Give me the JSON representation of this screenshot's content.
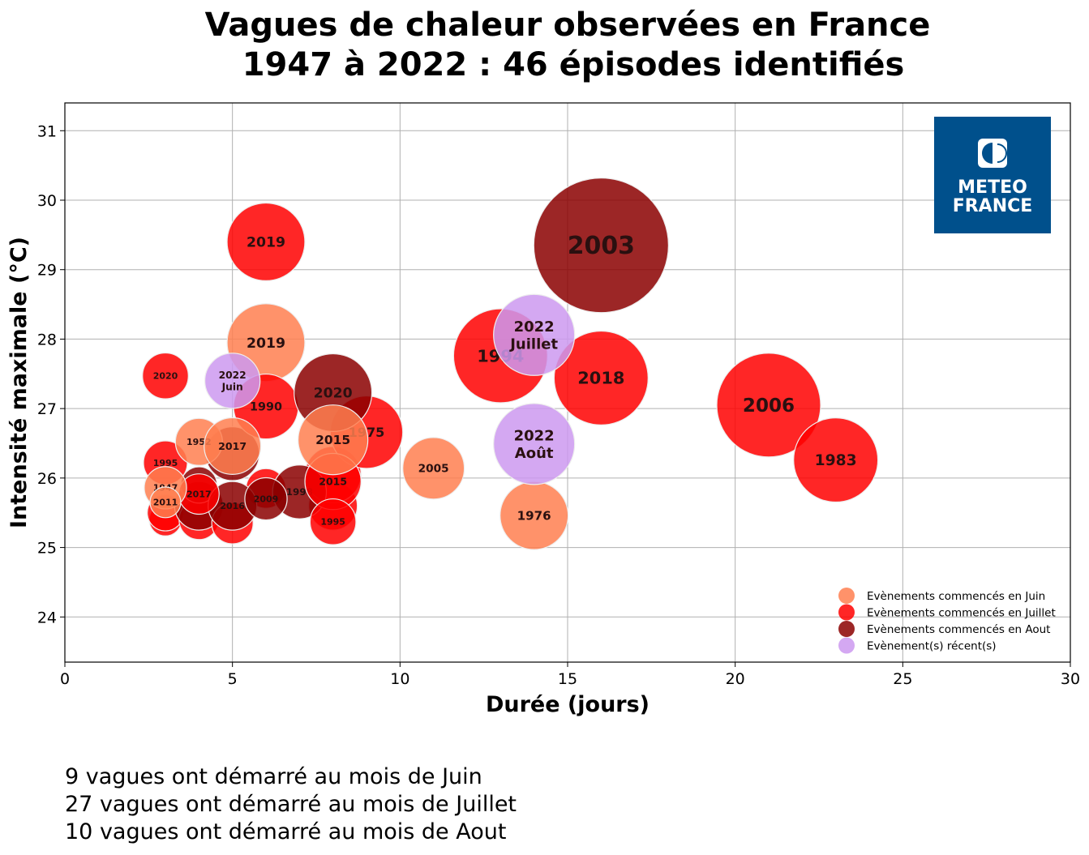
{
  "chart_data": {
    "type": "scatter",
    "title": [
      "Vagues de chaleur observées en France",
      "1947 à 2022 : 46 épisodes identifiés"
    ],
    "xlabel": "Durée (jours)",
    "ylabel": "Intensité maximale (°C)",
    "xlim": [
      0,
      30
    ],
    "ylim": [
      23.35,
      31.4
    ],
    "xticks": [
      0,
      5,
      10,
      15,
      20,
      25,
      30
    ],
    "yticks": [
      24,
      25,
      26,
      27,
      28,
      29,
      30,
      31
    ],
    "grid": true,
    "legend_position": "bottom-right",
    "colors": {
      "juin": "#ff7f50",
      "juillet": "#ff0000",
      "aout": "#8b0000",
      "recent": "#cc99f0"
    },
    "legend": [
      {
        "key": "juin",
        "label": "Evènements commencés en Juin"
      },
      {
        "key": "juillet",
        "label": "Evènements commencés en Juillet"
      },
      {
        "key": "aout",
        "label": "Evènements commencés en Aout"
      },
      {
        "key": "recent",
        "label": "Evènement(s) récent(s)"
      }
    ],
    "points": [
      {
        "label": "",
        "group": "juillet",
        "duration": 3,
        "intensity": 25.4,
        "severity": 4
      },
      {
        "label": "",
        "group": "juillet",
        "duration": 3,
        "intensity": 25.5,
        "severity": 5
      },
      {
        "label": "",
        "group": "juillet",
        "duration": 4,
        "intensity": 25.4,
        "severity": 6
      },
      {
        "label": "",
        "group": "aout",
        "duration": 4,
        "intensity": 25.6,
        "severity": 9
      },
      {
        "label": "",
        "group": "aout",
        "duration": 4,
        "intensity": 25.9,
        "severity": 5
      },
      {
        "label": "",
        "group": "juillet",
        "duration": 5,
        "intensity": 25.35,
        "severity": 6.5
      },
      {
        "label": "",
        "group": "aout",
        "duration": 5,
        "intensity": 26.35,
        "severity": 11
      },
      {
        "label": "",
        "group": "juillet",
        "duration": 6,
        "intensity": 25.85,
        "severity": 6
      },
      {
        "label": "",
        "group": "juillet",
        "duration": 8,
        "intensity": 25.6,
        "severity": 9
      },
      {
        "label": "",
        "group": "juillet",
        "duration": 8,
        "intensity": 26.05,
        "severity": 12
      },
      {
        "label": "2003",
        "group": "aout",
        "duration": 16,
        "intensity": 29.35,
        "severity": 69
      },
      {
        "label": "2019",
        "group": "juillet",
        "duration": 6,
        "intensity": 29.4,
        "severity": 23
      },
      {
        "label": "2019",
        "group": "juin",
        "duration": 6,
        "intensity": 27.95,
        "severity": 23
      },
      {
        "label": "2020",
        "group": "juillet",
        "duration": 3,
        "intensity": 27.47,
        "severity": 8
      },
      {
        "label": "1990",
        "group": "juillet",
        "duration": 6,
        "intensity": 27.03,
        "severity": 16
      },
      {
        "label": "1975",
        "group": "juillet",
        "duration": 9,
        "intensity": 26.66,
        "severity": 20
      },
      {
        "label": "2020",
        "group": "aout",
        "duration": 8,
        "intensity": 27.23,
        "severity": 23
      },
      {
        "label": "1998",
        "group": "aout",
        "duration": 7,
        "intensity": 25.8,
        "severity": 11
      },
      {
        "label": "2015",
        "group": "juillet",
        "duration": 8,
        "intensity": 25.95,
        "severity": 12
      },
      {
        "label": "1995",
        "group": "juillet",
        "duration": 8,
        "intensity": 25.37,
        "severity": 8
      },
      {
        "label": "2015",
        "group": "juin",
        "duration": 8,
        "intensity": 26.55,
        "severity": 18.5
      },
      {
        "label": "1995",
        "group": "juillet",
        "duration": 3,
        "intensity": 26.22,
        "severity": 7.3
      },
      {
        "label": "1952",
        "group": "juin",
        "duration": 4,
        "intensity": 26.52,
        "severity": 8.4
      },
      {
        "label": "2016",
        "group": "aout",
        "duration": 5,
        "intensity": 25.6,
        "severity": 9
      },
      {
        "label": "2017",
        "group": "juin",
        "duration": 5,
        "intensity": 26.46,
        "severity": 12.2
      },
      {
        "label": "2009",
        "group": "aout",
        "duration": 6,
        "intensity": 25.7,
        "severity": 6.8
      },
      {
        "label": "2017",
        "group": "juillet",
        "duration": 4,
        "intensity": 25.77,
        "severity": 6.2
      },
      {
        "label": "1947",
        "group": "juin",
        "duration": 3,
        "intensity": 25.86,
        "severity": 6.8
      },
      {
        "label": "2011",
        "group": "juin",
        "duration": 3,
        "intensity": 25.65,
        "severity": 3.6
      },
      {
        "label": "2005",
        "group": "juin",
        "duration": 11,
        "intensity": 26.14,
        "severity": 14.4
      },
      {
        "label": "1976",
        "group": "juin",
        "duration": 14,
        "intensity": 25.46,
        "severity": 17.6
      },
      {
        "label": "1994",
        "group": "juillet",
        "duration": 13,
        "intensity": 27.76,
        "severity": 33.6
      },
      {
        "label": "2018",
        "group": "juillet",
        "duration": 16,
        "intensity": 27.44,
        "severity": 33.6
      },
      {
        "label": "2006",
        "group": "juillet",
        "duration": 21,
        "intensity": 27.05,
        "severity": 41
      },
      {
        "label": "1983",
        "group": "juillet",
        "duration": 23,
        "intensity": 26.26,
        "severity": 27
      },
      {
        "label": "2022\nJuin",
        "group": "recent",
        "duration": 5,
        "intensity": 27.4,
        "severity": 11.6
      },
      {
        "label": "2022\nJuillet",
        "group": "recent",
        "duration": 14,
        "intensity": 28.06,
        "severity": 25
      },
      {
        "label": "2022\nAoût",
        "group": "recent",
        "duration": 14,
        "intensity": 26.49,
        "severity": 25
      }
    ]
  },
  "logo": {
    "line1": "METEO",
    "line2": "FRANCE",
    "color": "#00508c"
  },
  "summary": [
    "9 vagues ont démarré au mois de Juin",
    "27 vagues ont démarré au mois de Juillet",
    "10 vagues ont démarré au mois de Aout"
  ]
}
